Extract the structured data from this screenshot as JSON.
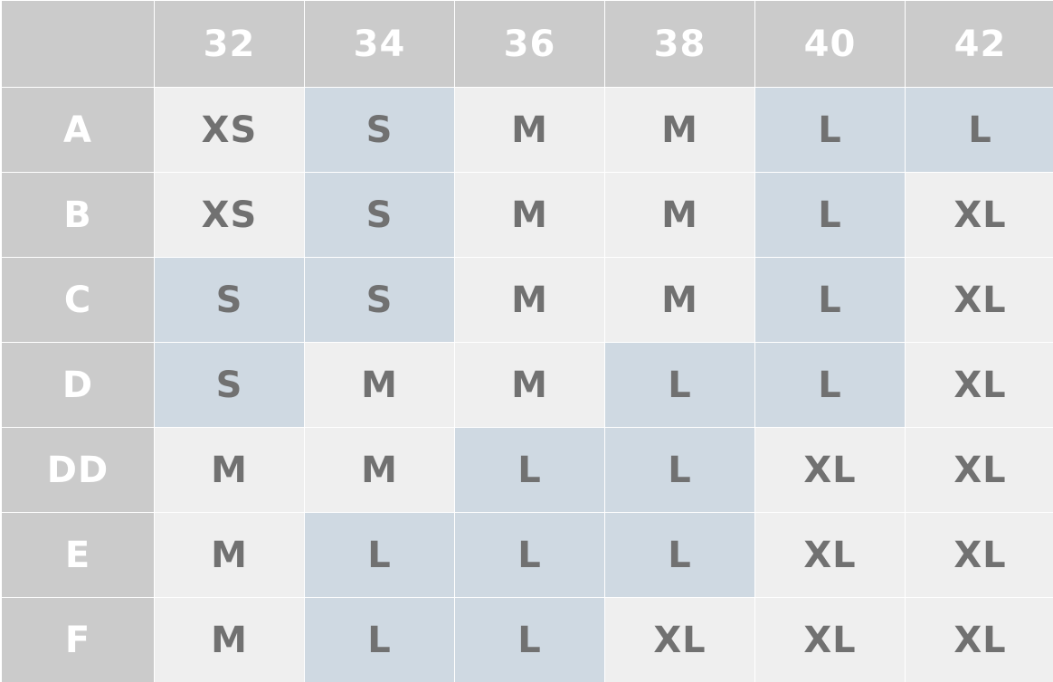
{
  "bands": [
    "32",
    "34",
    "36",
    "38",
    "40",
    "42"
  ],
  "rows": [
    {
      "cup": "A",
      "sizes": [
        "XS",
        "S",
        "M",
        "M",
        "L",
        "L"
      ]
    },
    {
      "cup": "B",
      "sizes": [
        "XS",
        "S",
        "M",
        "M",
        "L",
        "XL"
      ]
    },
    {
      "cup": "C",
      "sizes": [
        "S",
        "S",
        "M",
        "M",
        "L",
        "XL"
      ]
    },
    {
      "cup": "D",
      "sizes": [
        "S",
        "M",
        "M",
        "L",
        "L",
        "XL"
      ]
    },
    {
      "cup": "DD",
      "sizes": [
        "M",
        "M",
        "L",
        "L",
        "XL",
        "XL"
      ]
    },
    {
      "cup": "E",
      "sizes": [
        "M",
        "L",
        "L",
        "L",
        "XL",
        "XL"
      ]
    },
    {
      "cup": "F",
      "sizes": [
        "M",
        "L",
        "L",
        "XL",
        "XL",
        "XL"
      ]
    }
  ],
  "colors": {
    "header_bg": "#cbcbcb",
    "header_text": "#ffffff",
    "cell_light": "#efefef",
    "cell_highlight": "#cfd9e2",
    "cell_text": "#717171"
  }
}
